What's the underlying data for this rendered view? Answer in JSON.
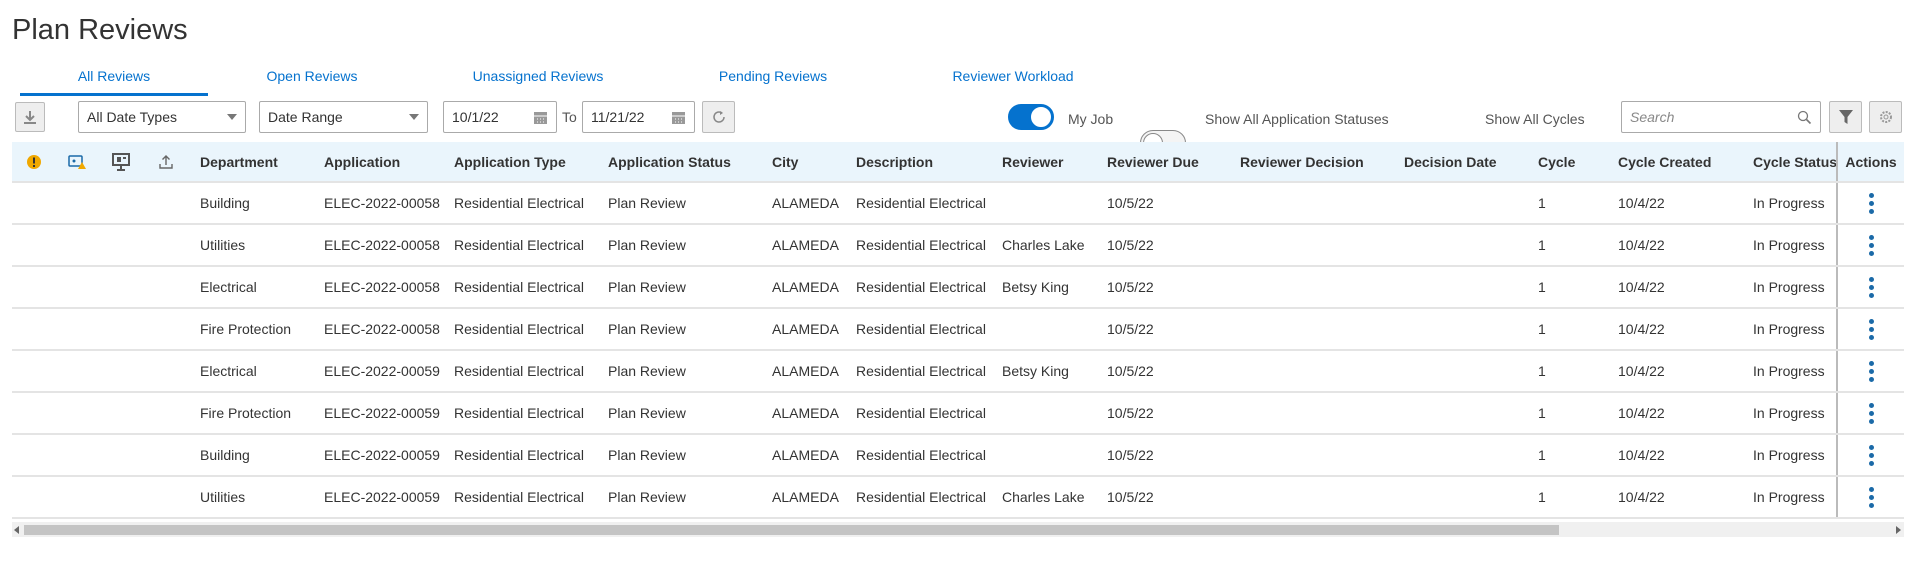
{
  "page": {
    "title": "Plan Reviews"
  },
  "tabs": [
    {
      "label": "All Reviews",
      "active": true
    },
    {
      "label": "Open Reviews"
    },
    {
      "label": "Unassigned Reviews"
    },
    {
      "label": "Pending Reviews"
    },
    {
      "label": "Reviewer Workload"
    }
  ],
  "toolbar": {
    "date_type": "All Date Types",
    "date_range": "Date Range",
    "from_date": "10/1/22",
    "to_label": "To",
    "to_date": "11/21/22",
    "toggles": [
      {
        "label": "My Job",
        "on": true
      },
      {
        "label": "Show All Application Statuses",
        "on": false
      },
      {
        "label": "Show All Cycles",
        "on": false
      }
    ],
    "search_placeholder": "Search"
  },
  "colors": {
    "accent": "#0572ce",
    "header_bg": "#eaf5fc",
    "warning": "#f0a800"
  },
  "table": {
    "icon_columns": [
      "warning-icon",
      "image-warning-icon",
      "monitor-icon",
      "upload-icon"
    ],
    "columns": [
      "Department",
      "Application",
      "Application Type",
      "Application Status",
      "City",
      "Description",
      "Reviewer",
      "Reviewer Due",
      "Reviewer Decision",
      "Decision Date",
      "Cycle",
      "Cycle Created",
      "Cycle Status",
      "Actions"
    ],
    "rows": [
      [
        "Building",
        "ELEC-2022-00058",
        "Residential Electrical",
        "Plan Review",
        "ALAMEDA",
        "Residential Electrical",
        "",
        "10/5/22",
        "",
        "",
        "1",
        "10/4/22",
        "In Progress"
      ],
      [
        "Utilities",
        "ELEC-2022-00058",
        "Residential Electrical",
        "Plan Review",
        "ALAMEDA",
        "Residential Electrical",
        "Charles Lake",
        "10/5/22",
        "",
        "",
        "1",
        "10/4/22",
        "In Progress"
      ],
      [
        "Electrical",
        "ELEC-2022-00058",
        "Residential Electrical",
        "Plan Review",
        "ALAMEDA",
        "Residential Electrical",
        "Betsy King",
        "10/5/22",
        "",
        "",
        "1",
        "10/4/22",
        "In Progress"
      ],
      [
        "Fire Protection",
        "ELEC-2022-00058",
        "Residential Electrical",
        "Plan Review",
        "ALAMEDA",
        "Residential Electrical",
        "",
        "10/5/22",
        "",
        "",
        "1",
        "10/4/22",
        "In Progress"
      ],
      [
        "Electrical",
        "ELEC-2022-00059",
        "Residential Electrical",
        "Plan Review",
        "ALAMEDA",
        "Residential Electrical",
        "Betsy King",
        "10/5/22",
        "",
        "",
        "1",
        "10/4/22",
        "In Progress"
      ],
      [
        "Fire Protection",
        "ELEC-2022-00059",
        "Residential Electrical",
        "Plan Review",
        "ALAMEDA",
        "Residential Electrical",
        "",
        "10/5/22",
        "",
        "",
        "1",
        "10/4/22",
        "In Progress"
      ],
      [
        "Building",
        "ELEC-2022-00059",
        "Residential Electrical",
        "Plan Review",
        "ALAMEDA",
        "Residential Electrical",
        "",
        "10/5/22",
        "",
        "",
        "1",
        "10/4/22",
        "In Progress"
      ],
      [
        "Utilities",
        "ELEC-2022-00059",
        "Residential Electrical",
        "Plan Review",
        "ALAMEDA",
        "Residential Electrical",
        "Charles Lake",
        "10/5/22",
        "",
        "",
        "1",
        "10/4/22",
        "In Progress"
      ]
    ]
  }
}
